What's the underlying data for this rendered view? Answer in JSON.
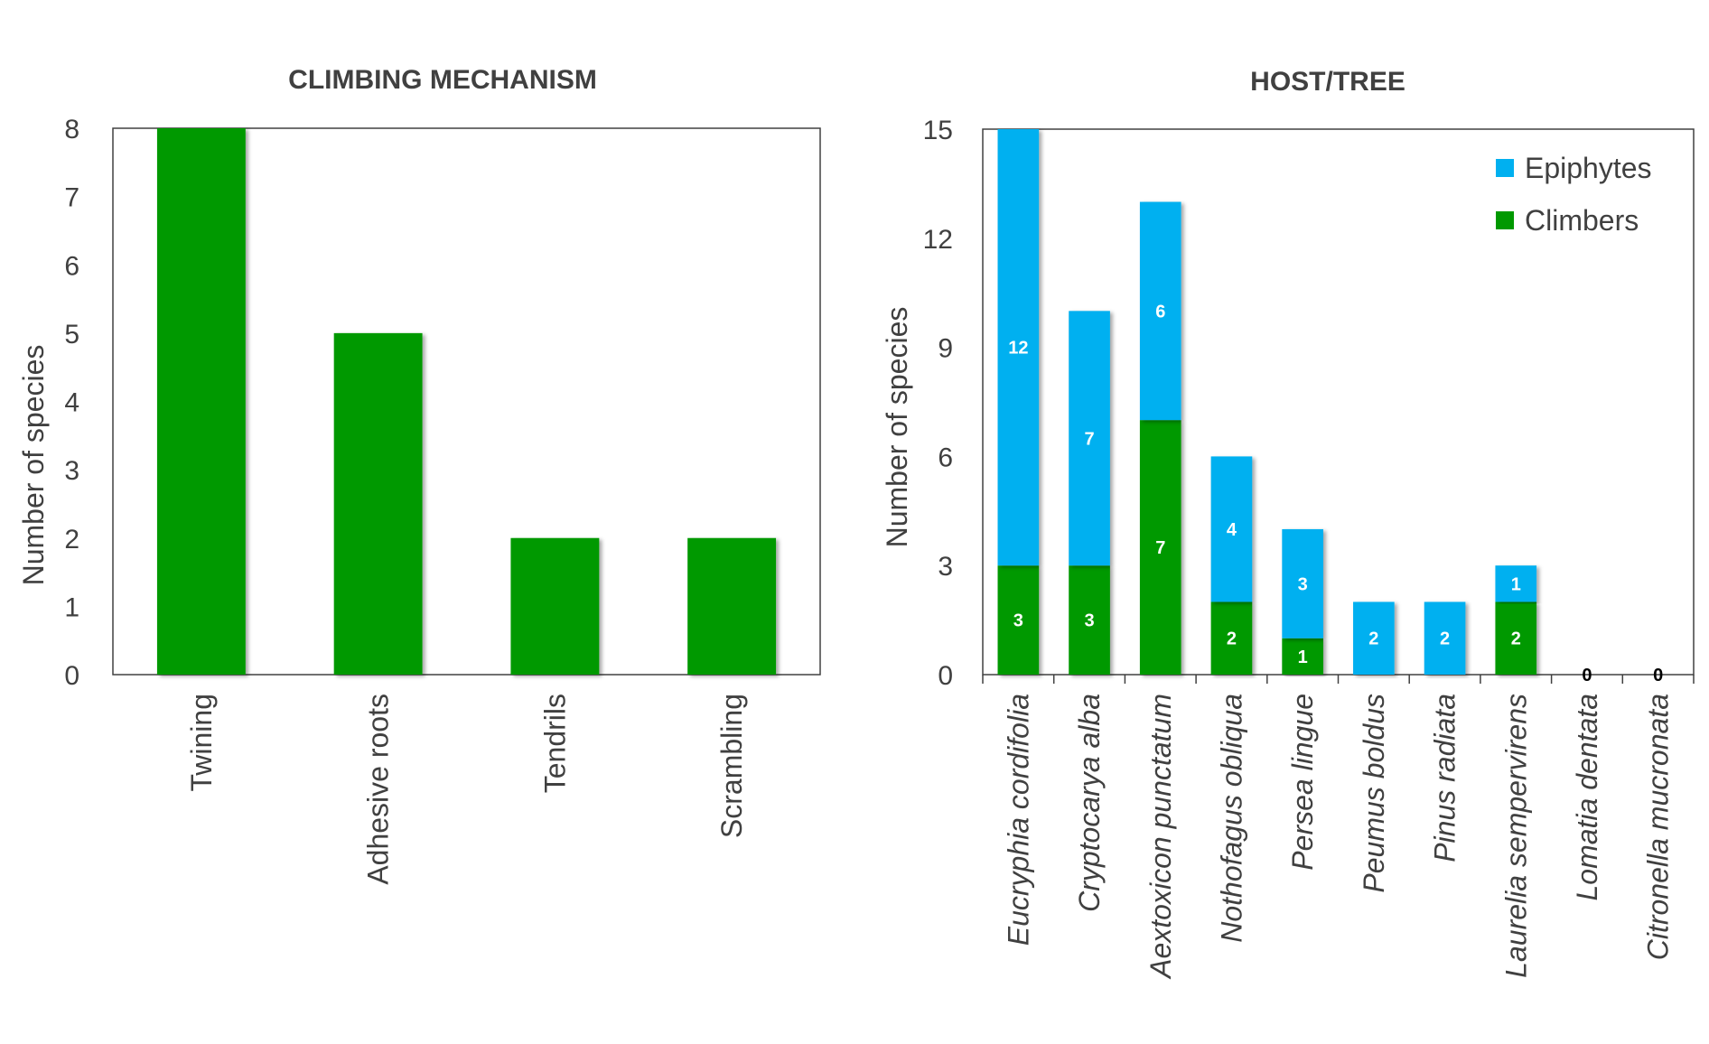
{
  "chart_data": [
    {
      "type": "bar",
      "title": "CLIMBING MECHANISM",
      "ylabel": "Number of species",
      "ylim": [
        0,
        8
      ],
      "yticks": [
        "0",
        "1",
        "2",
        "3",
        "4",
        "5",
        "6",
        "7",
        "8"
      ],
      "categories": [
        "Twining",
        "Adhesive roots",
        "Tendrils",
        "Scrambling"
      ],
      "series": [
        {
          "values": [
            8,
            5,
            2,
            2
          ],
          "color": "#009900"
        }
      ]
    },
    {
      "type": "bar",
      "stacked": true,
      "title": "HOST/TREE",
      "ylabel": "Number of species",
      "ylim": [
        0,
        15
      ],
      "yticks": [
        "0",
        "3",
        "6",
        "9",
        "12",
        "15"
      ],
      "categories": [
        "Eucryphia cordifolia",
        "Cryptocarya alba",
        "Aextoxicon punctatum",
        "Nothofagus obliqua",
        "Persea lingue",
        "Peumus boldus",
        "Pinus radiata",
        "Laurelia sempervirens",
        "Lomatia dentata",
        "Citronella mucronata"
      ],
      "series": [
        {
          "name": "Climbers",
          "values": [
            3,
            3,
            7,
            2,
            1,
            0,
            0,
            2,
            0,
            0
          ],
          "color": "#009900"
        },
        {
          "name": "Epiphytes",
          "values": [
            12,
            7,
            6,
            4,
            3,
            2,
            2,
            1,
            0,
            0
          ],
          "color": "#00B0F0"
        }
      ],
      "legend": {
        "position": "top-right",
        "order": [
          "Epiphytes",
          "Climbers"
        ]
      }
    }
  ]
}
